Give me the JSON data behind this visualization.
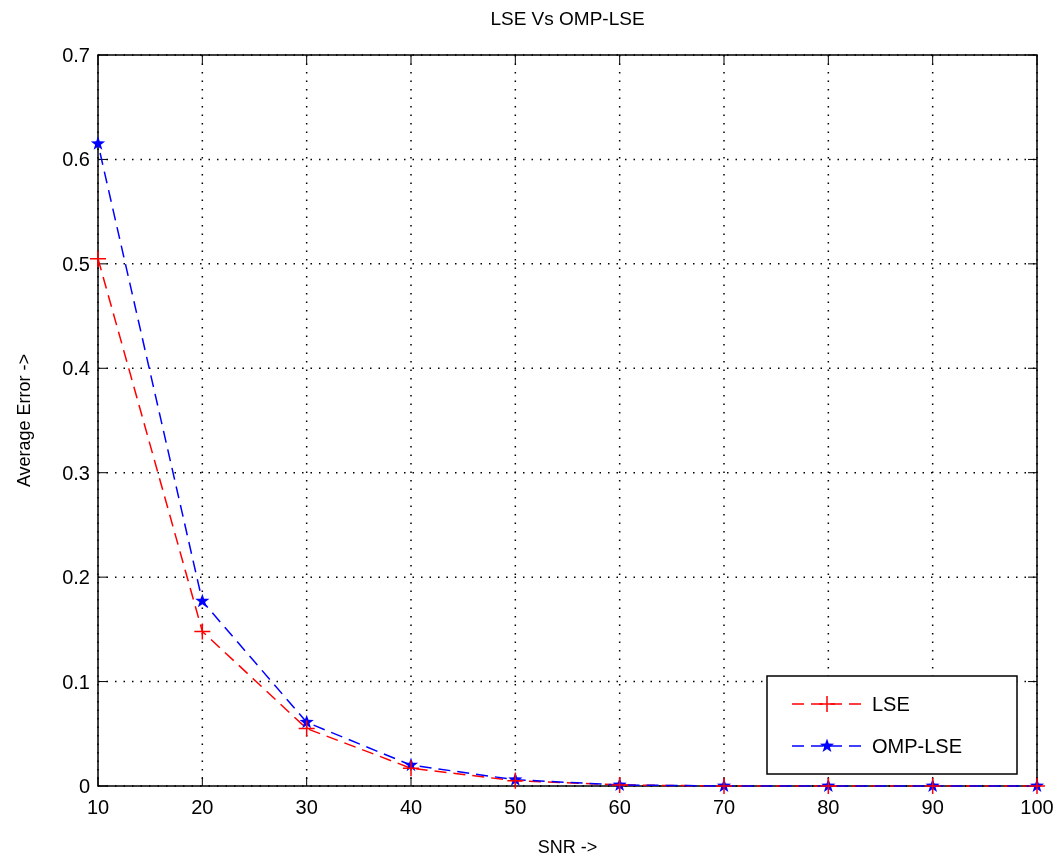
{
  "chart_data": {
    "type": "line",
    "title": "LSE Vs OMP-LSE",
    "xlabel": "SNR ->",
    "ylabel": "Average Error ->",
    "x": [
      10,
      20,
      30,
      40,
      50,
      60,
      70,
      80,
      90,
      100
    ],
    "series": [
      {
        "name": "LSE",
        "color": "#ff0000",
        "marker": "cross",
        "values": [
          0.505,
          0.148,
          0.055,
          0.017,
          0.005,
          0.001,
          0,
          0,
          0,
          0
        ]
      },
      {
        "name": "OMP-LSE",
        "color": "#0000ff",
        "marker": "star",
        "values": [
          0.615,
          0.177,
          0.061,
          0.02,
          0.006,
          0.001,
          0,
          0,
          0,
          0
        ]
      }
    ],
    "xlim": [
      10,
      100
    ],
    "xticks": [
      10,
      20,
      30,
      40,
      50,
      60,
      70,
      80,
      90,
      100
    ],
    "ylim": [
      0,
      0.7
    ],
    "yticks": [
      0,
      0.1,
      0.2,
      0.3,
      0.4,
      0.5,
      0.6,
      0.7
    ],
    "grid": true,
    "legend": "bottom right",
    "line_style": "dashed"
  }
}
